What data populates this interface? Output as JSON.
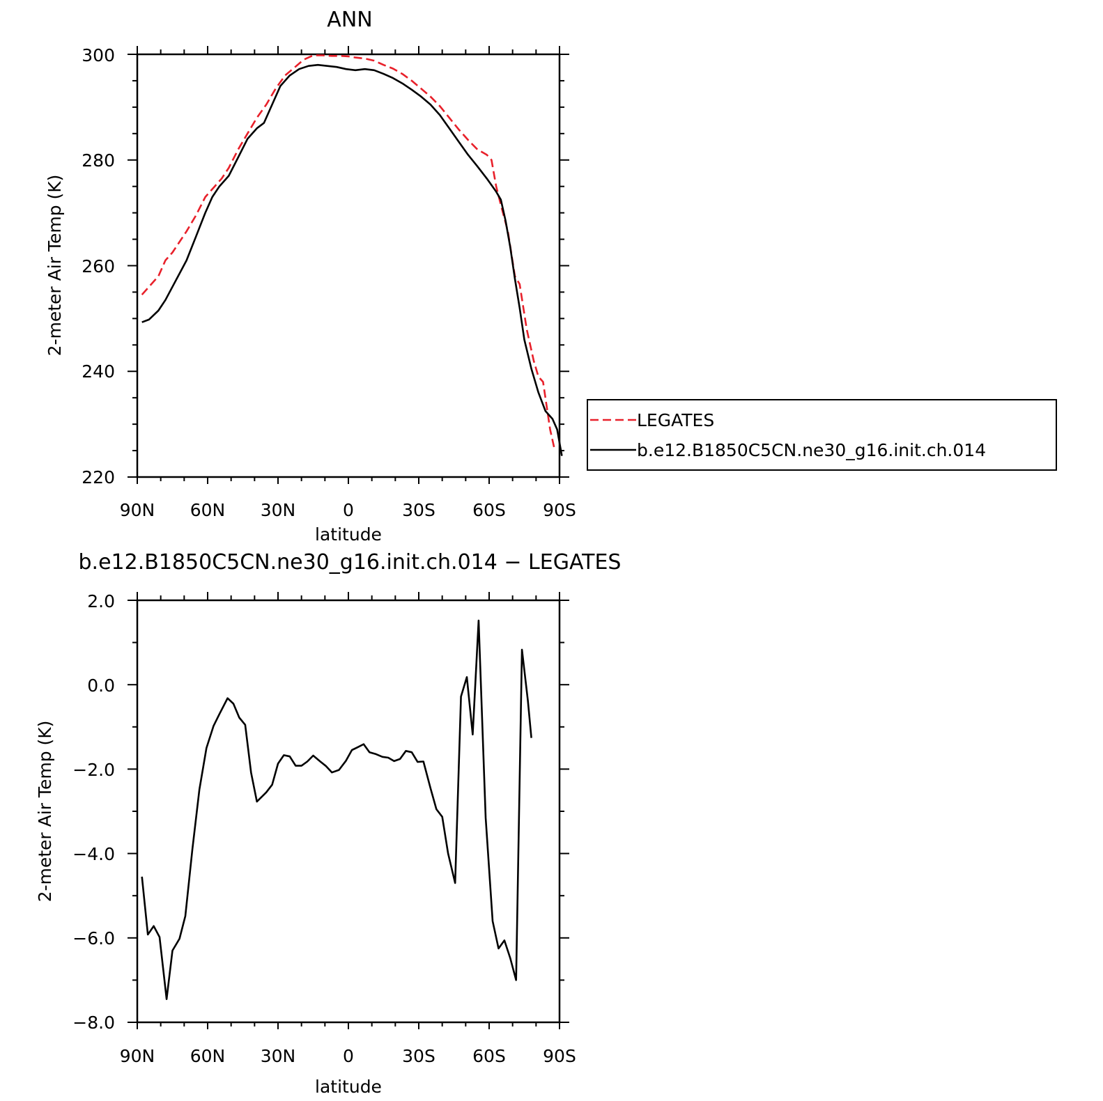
{
  "chart_data": [
    {
      "type": "line",
      "title": "ANN",
      "xlabel": "latitude",
      "ylabel": "2-meter Air Temp (K)",
      "xlim": [
        90,
        -90
      ],
      "ylim": [
        220,
        300
      ],
      "x_tick_labels": [
        "90N",
        "60N",
        "30N",
        "0",
        "30S",
        "60S",
        "90S"
      ],
      "y_tick_labels": [
        "220",
        "240",
        "260",
        "280",
        "300"
      ],
      "legend": "right",
      "series": [
        {
          "name": "LEGATES",
          "color": "#e8202a",
          "dash": true,
          "points": [
            [
              88,
              254.5
            ],
            [
              85,
              256
            ],
            [
              81,
              258
            ],
            [
              78,
              261
            ],
            [
              75,
              262.5
            ],
            [
              72,
              264.5
            ],
            [
              69,
              266.5
            ],
            [
              65,
              269.5
            ],
            [
              61,
              273
            ],
            [
              57,
              275
            ],
            [
              54,
              276.5
            ],
            [
              51,
              278.5
            ],
            [
              47,
              282
            ],
            [
              43,
              285
            ],
            [
              39,
              288
            ],
            [
              35,
              290.5
            ],
            [
              31,
              293.5
            ],
            [
              27,
              296
            ],
            [
              23,
              297.5
            ],
            [
              19,
              299
            ],
            [
              15,
              299.8
            ],
            [
              11,
              299.8
            ],
            [
              7,
              299.7
            ],
            [
              3,
              299.7
            ],
            [
              0,
              299.6
            ],
            [
              -3,
              299.4
            ],
            [
              -7,
              299.2
            ],
            [
              -11,
              298.8
            ],
            [
              -15,
              298
            ],
            [
              -19,
              297.3
            ],
            [
              -23,
              296.3
            ],
            [
              -27,
              295
            ],
            [
              -31,
              293.5
            ],
            [
              -35,
              292
            ],
            [
              -39,
              290.2
            ],
            [
              -43,
              288
            ],
            [
              -47,
              285.8
            ],
            [
              -51,
              283.8
            ],
            [
              -55,
              282
            ],
            [
              -59,
              281
            ],
            [
              -61,
              280
            ],
            [
              -63,
              275
            ],
            [
              -65,
              271.5
            ],
            [
              -68,
              266.5
            ],
            [
              -71,
              258
            ],
            [
              -73,
              256.5
            ],
            [
              -76,
              248
            ],
            [
              -79,
              242
            ],
            [
              -81,
              239
            ],
            [
              -83,
              238
            ],
            [
              -86,
              229
            ],
            [
              -88,
              225
            ]
          ]
        },
        {
          "name": "b.e12.B1850C5CN.ne30_g16.init.ch.014",
          "color": "#000000",
          "dash": false,
          "points": [
            [
              88,
              249.3
            ],
            [
              85,
              249.8
            ],
            [
              81,
              251.5
            ],
            [
              78,
              253.5
            ],
            [
              75,
              256
            ],
            [
              72,
              258.5
            ],
            [
              69,
              261
            ],
            [
              65,
              265.5
            ],
            [
              61,
              270
            ],
            [
              58,
              273
            ],
            [
              55,
              275
            ],
            [
              51,
              277
            ],
            [
              47,
              280.5
            ],
            [
              43,
              284
            ],
            [
              39,
              286
            ],
            [
              36,
              287
            ],
            [
              33,
              290
            ],
            [
              29,
              294
            ],
            [
              25,
              296
            ],
            [
              21,
              297.2
            ],
            [
              17,
              297.8
            ],
            [
              13,
              298
            ],
            [
              9,
              297.8
            ],
            [
              5,
              297.6
            ],
            [
              1,
              297.2
            ],
            [
              -3,
              297
            ],
            [
              -7,
              297.2
            ],
            [
              -11,
              297
            ],
            [
              -15,
              296.3
            ],
            [
              -19,
              295.5
            ],
            [
              -23,
              294.5
            ],
            [
              -27,
              293.3
            ],
            [
              -31,
              292
            ],
            [
              -35,
              290.5
            ],
            [
              -39,
              288.5
            ],
            [
              -43,
              286
            ],
            [
              -47,
              283.5
            ],
            [
              -51,
              281
            ],
            [
              -55,
              278.8
            ],
            [
              -59,
              276.5
            ],
            [
              -63,
              274
            ],
            [
              -65,
              272.5
            ],
            [
              -67,
              268.5
            ],
            [
              -69,
              263.5
            ],
            [
              -71,
              257.5
            ],
            [
              -73,
              252
            ],
            [
              -75,
              246
            ],
            [
              -78,
              240.5
            ],
            [
              -81,
              236
            ],
            [
              -84,
              232.5
            ],
            [
              -87,
              231
            ],
            [
              -89,
              229
            ],
            [
              -91,
              224
            ]
          ]
        }
      ]
    },
    {
      "type": "line",
      "title": "b.e12.B1850C5CN.ne30_g16.init.ch.014 − LEGATES",
      "xlabel": "latitude",
      "ylabel": "2-meter Air Temp (K)",
      "xlim": [
        90,
        -90
      ],
      "ylim": [
        -8,
        2
      ],
      "x_tick_labels": [
        "90N",
        "60N",
        "30N",
        "0",
        "30S",
        "60S",
        "90S"
      ],
      "y_tick_labels": [
        "−8.0",
        "−6.0",
        "−4.0",
        "−2.0",
        "0.0",
        "2.0"
      ],
      "series": [
        {
          "color": "#000000",
          "points": [
            [
              88,
              -4.55
            ],
            [
              85.5,
              -5.92
            ],
            [
              83,
              -5.72
            ],
            [
              80.5,
              -5.98
            ],
            [
              77.5,
              -7.45
            ],
            [
              75,
              -6.3
            ],
            [
              72,
              -6.02
            ],
            [
              69.5,
              -5.48
            ],
            [
              66.5,
              -3.9
            ],
            [
              63.5,
              -2.48
            ],
            [
              60.5,
              -1.5
            ],
            [
              57.5,
              -0.98
            ],
            [
              55,
              -0.7
            ],
            [
              51.5,
              -0.32
            ],
            [
              49,
              -0.45
            ],
            [
              46.5,
              -0.78
            ],
            [
              44,
              -0.95
            ],
            [
              41.5,
              -2.08
            ],
            [
              39,
              -2.77
            ],
            [
              35,
              -2.55
            ],
            [
              32.5,
              -2.37
            ],
            [
              30,
              -1.87
            ],
            [
              27.5,
              -1.67
            ],
            [
              25,
              -1.7
            ],
            [
              22.5,
              -1.92
            ],
            [
              20,
              -1.92
            ],
            [
              17.5,
              -1.82
            ],
            [
              15,
              -1.68
            ],
            [
              12,
              -1.82
            ],
            [
              9.5,
              -1.93
            ],
            [
              7,
              -2.08
            ],
            [
              4,
              -2.02
            ],
            [
              1,
              -1.8
            ],
            [
              -1.5,
              -1.55
            ],
            [
              -4,
              -1.48
            ],
            [
              -6.5,
              -1.41
            ],
            [
              -9,
              -1.6
            ],
            [
              -11.5,
              -1.64
            ],
            [
              -14.5,
              -1.71
            ],
            [
              -17,
              -1.73
            ],
            [
              -19.5,
              -1.81
            ],
            [
              -22,
              -1.76
            ],
            [
              -24.5,
              -1.57
            ],
            [
              -27,
              -1.6
            ],
            [
              -29.5,
              -1.83
            ],
            [
              -32,
              -1.82
            ],
            [
              -35,
              -2.45
            ],
            [
              -37.5,
              -2.95
            ],
            [
              -40,
              -3.13
            ],
            [
              -42.5,
              -4.0
            ],
            [
              -45.5,
              -4.7
            ],
            [
              -48,
              -0.28
            ],
            [
              -50.5,
              0.18
            ],
            [
              -53,
              -1.18
            ],
            [
              -55.5,
              1.52
            ],
            [
              -58.5,
              -3.15
            ],
            [
              -61.5,
              -5.6
            ],
            [
              -64,
              -6.25
            ],
            [
              -66.5,
              -6.06
            ],
            [
              -69,
              -6.48
            ],
            [
              -71.5,
              -7.0
            ],
            [
              -74,
              0.83
            ],
            [
              -76.5,
              -0.38
            ],
            [
              -78,
              -1.26
            ]
          ]
        }
      ]
    }
  ]
}
